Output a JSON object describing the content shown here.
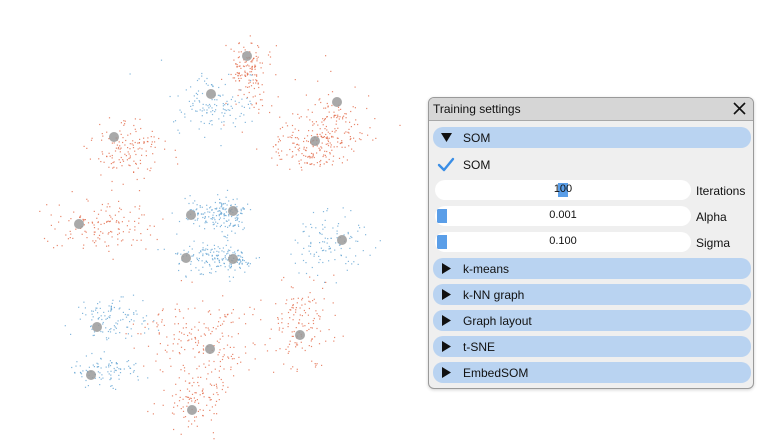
{
  "window": {
    "title": "Training settings",
    "close_icon": "close-icon"
  },
  "sections": [
    {
      "id": "som",
      "label": "SOM",
      "expanded": true
    },
    {
      "id": "kmeans",
      "label": "k-means",
      "expanded": false
    },
    {
      "id": "knn",
      "label": "k-NN graph",
      "expanded": false
    },
    {
      "id": "graph",
      "label": "Graph layout",
      "expanded": false
    },
    {
      "id": "tsne",
      "label": "t-SNE",
      "expanded": false
    },
    {
      "id": "embedsom",
      "label": "EmbedSOM",
      "expanded": false
    }
  ],
  "som": {
    "checkbox": {
      "label": "SOM",
      "checked": true
    },
    "sliders": [
      {
        "label": "Iterations",
        "value": "100",
        "fraction": 0.5
      },
      {
        "label": "Alpha",
        "value": "0.001",
        "fraction": 0.0
      },
      {
        "label": "Sigma",
        "value": "0.100",
        "fraction": 0.0
      }
    ]
  },
  "colors": {
    "accent": "#5a9ee8",
    "section": "#b9d3f1",
    "panel": "#efefef",
    "red_points": "#e0603c",
    "blue_points": "#5b9fd0",
    "nodes": "#9a9a9a"
  }
}
